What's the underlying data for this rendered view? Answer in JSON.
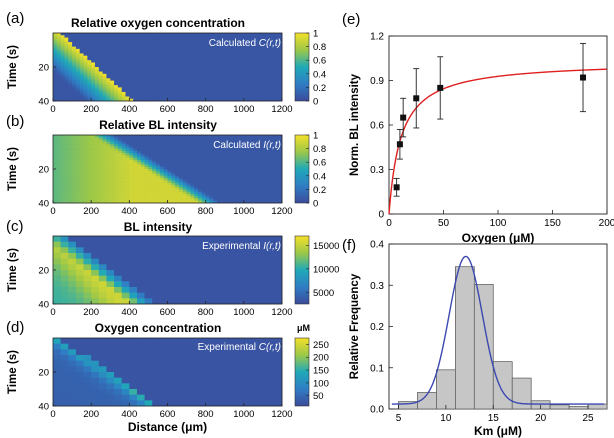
{
  "figure": {
    "panels": {
      "a": {
        "letter": "(a)",
        "title": "Relative oxygen concentration",
        "label_prefix": "Calculated ",
        "label_var": "C(r,t)"
      },
      "b": {
        "letter": "(b)",
        "title": "Relative BL intensity",
        "label_prefix": "Calculated ",
        "label_var": "I(r,t)"
      },
      "c": {
        "letter": "(c)",
        "title": "BL intensity",
        "label_prefix": "Experimental ",
        "label_var": "I(r,t)"
      },
      "d": {
        "letter": "(d)",
        "title": "Oxygen concentration",
        "label_prefix": "Experimental ",
        "label_var": "C(r,t)"
      },
      "e": {
        "letter": "(e)"
      },
      "f": {
        "letter": "(f)"
      }
    }
  },
  "colors": {
    "heat_low": "#3b4a9a",
    "heat_mid": "#1fa9b8",
    "heat_high": "#f5e02a",
    "fit_line_e": "#e02020",
    "fit_line_f": "#3b48b0",
    "bar_fill": "#c6c6c6",
    "bar_stroke": "#555555"
  },
  "chart_data": [
    {
      "id": "a",
      "type": "heatmap",
      "title": "Relative oxygen concentration",
      "annotation": "Calculated C(r,t)",
      "xlabel": "",
      "ylabel": "Time (s)",
      "xlim": [
        0,
        1200
      ],
      "ylim": [
        0,
        40
      ],
      "xticks": [
        "0",
        "200",
        "400",
        "600",
        "800",
        "1000",
        "1200"
      ],
      "yticks": [
        "20",
        "40"
      ],
      "colorbar": {
        "ticks": [
          "1",
          "0.8",
          "0.6",
          "0.4",
          "0.2",
          "0"
        ],
        "range": [
          0,
          1
        ],
        "unit": ""
      }
    },
    {
      "id": "b",
      "type": "heatmap",
      "title": "Relative BL intensity",
      "annotation": "Calculated I(r,t)",
      "xlabel": "",
      "ylabel": "Time (s)",
      "xlim": [
        0,
        1200
      ],
      "ylim": [
        0,
        40
      ],
      "xticks": [
        "0",
        "200",
        "400",
        "600",
        "800",
        "1000",
        "1200"
      ],
      "yticks": [
        "20",
        "40"
      ],
      "colorbar": {
        "ticks": [
          "1",
          "0.8",
          "0.6",
          "0.4",
          "0.2",
          "0"
        ],
        "range": [
          0,
          1
        ],
        "unit": ""
      }
    },
    {
      "id": "c",
      "type": "heatmap",
      "title": "BL intensity",
      "annotation": "Experimental I(r,t)",
      "xlabel": "",
      "ylabel": "Time (s)",
      "xlim": [
        0,
        1200
      ],
      "ylim": [
        0,
        40
      ],
      "xticks": [
        "0",
        "200",
        "400",
        "600",
        "800",
        "1000",
        "1200"
      ],
      "yticks": [
        "20",
        "40"
      ],
      "colorbar": {
        "ticks": [
          "15000",
          "10000",
          "5000"
        ],
        "range": [
          2500,
          17000
        ],
        "unit": ""
      }
    },
    {
      "id": "d",
      "type": "heatmap",
      "title": "Oxygen concentration",
      "annotation": "Experimental C(r,t)",
      "xlabel": "Distance (μm)",
      "ylabel": "Time (s)",
      "xlim": [
        0,
        1200
      ],
      "ylim": [
        0,
        40
      ],
      "xticks": [
        "0",
        "200",
        "400",
        "600",
        "800",
        "1000",
        "1200"
      ],
      "yticks": [
        "20",
        "40"
      ],
      "colorbar": {
        "ticks": [
          "250",
          "200",
          "150",
          "100",
          "50"
        ],
        "range": [
          10,
          275
        ],
        "unit": "μM"
      }
    },
    {
      "id": "e",
      "type": "scatter",
      "xlabel": "Oxygen (μM)",
      "ylabel": "Norm. BL intensity",
      "xlim": [
        0,
        200
      ],
      "ylim": [
        0,
        1.2
      ],
      "xticks": [
        0,
        50,
        100,
        150,
        200
      ],
      "yticks": [
        0,
        0.3,
        0.6,
        0.9,
        1.2
      ],
      "ytick_labels": [
        "0",
        "0.3",
        "0.6",
        "0.9",
        "1.2"
      ],
      "points": [
        {
          "x": 7,
          "y": 0.18,
          "err": 0.06
        },
        {
          "x": 10,
          "y": 0.47,
          "err": 0.1
        },
        {
          "x": 13,
          "y": 0.65,
          "err": 0.13
        },
        {
          "x": 25,
          "y": 0.78,
          "err": 0.2
        },
        {
          "x": 47,
          "y": 0.85,
          "err": 0.21
        },
        {
          "x": 178,
          "y": 0.92,
          "err": 0.23
        }
      ],
      "fit": {
        "type": "michaelis-menten",
        "vmax": 1.03,
        "km": 11
      }
    },
    {
      "id": "f",
      "type": "bar",
      "xlabel": "Km (μM)",
      "ylabel": "Relative Frequency",
      "xlim": [
        4,
        27
      ],
      "ylim": [
        0,
        0.4
      ],
      "xticks": [
        5,
        10,
        15,
        20,
        25
      ],
      "yticks": [
        0,
        0.1,
        0.2,
        0.3,
        0.4
      ],
      "ytick_labels": [
        "0.0",
        "0.1",
        "0.2",
        "0.3",
        "0.4"
      ],
      "bins": [
        {
          "center": 6,
          "value": 0.018
        },
        {
          "center": 8,
          "value": 0.04
        },
        {
          "center": 10,
          "value": 0.095
        },
        {
          "center": 12,
          "value": 0.345
        },
        {
          "center": 14,
          "value": 0.302
        },
        {
          "center": 16,
          "value": 0.115
        },
        {
          "center": 18,
          "value": 0.075
        },
        {
          "center": 20,
          "value": 0.02
        },
        {
          "center": 22,
          "value": 0.01
        },
        {
          "center": 24,
          "value": 0.006
        },
        {
          "center": 26,
          "value": 0.012
        }
      ],
      "fit": {
        "type": "gaussian",
        "mean": 12.1,
        "sigma": 1.75,
        "amplitude": 0.358,
        "baseline": 0.012
      }
    }
  ]
}
